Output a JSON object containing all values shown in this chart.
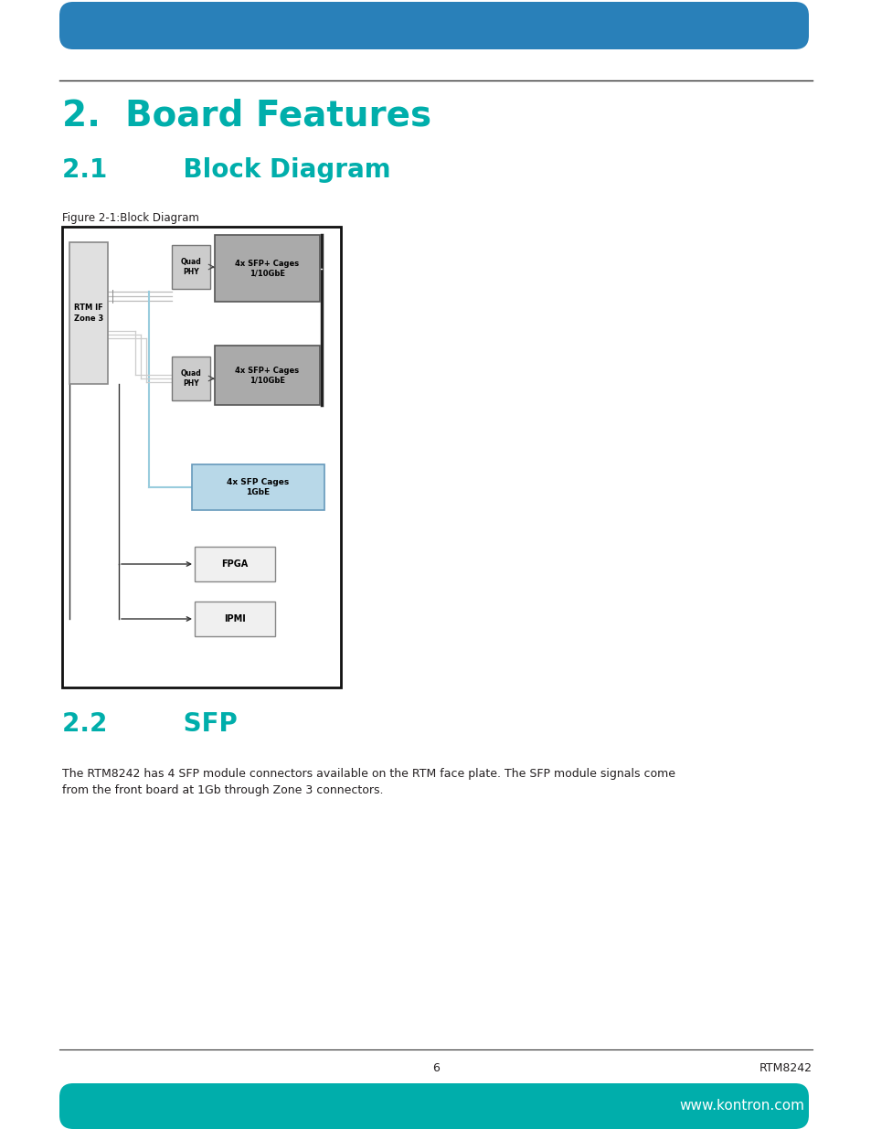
{
  "title": "2.  Board Features",
  "section_21": "2.1   Block Diagram",
  "section_22": "2.2   SFP",
  "figure_caption": "Figure 2-1:Block Diagram",
  "body_text_1": "The RTM8242 has 4 SFP module connectors available on the RTM face plate. The SFP module signals come",
  "body_text_2": "from the front board at 1Gb through Zone 3 connectors.",
  "page_number": "6",
  "page_label": "RTM8242",
  "website": "www.kontron.com",
  "teal_color": "#00AEAB",
  "blue_header_color": "#2980B9",
  "title_color": "#00AEAB",
  "text_color": "#231F20",
  "outer_border": "#111111"
}
